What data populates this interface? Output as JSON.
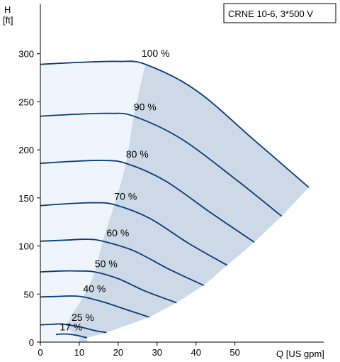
{
  "chart_data": {
    "type": "line",
    "title": "CRNE 10-6, 3*500 V",
    "ylabel_line1": "H",
    "ylabel_line2": "[ft]",
    "xlabel": "Q [US gpm]",
    "xlim": [
      0,
      71
    ],
    "ylim": [
      0,
      350
    ],
    "x_ticks": [
      0,
      10,
      20,
      30,
      40,
      50
    ],
    "y_ticks": [
      0,
      50,
      100,
      150,
      200,
      250,
      300
    ],
    "grid": false,
    "colors": {
      "curve": "#0a3a7a",
      "region_inner": "#eef5fc",
      "region_outer": "#cdd9e6",
      "axis": "#000000"
    },
    "series": [
      {
        "name": "100 %",
        "points": [
          [
            0,
            289
          ],
          [
            10,
            291
          ],
          [
            20,
            292
          ],
          [
            27,
            289
          ],
          [
            40,
            262
          ],
          [
            55,
            210
          ],
          [
            69,
            161
          ]
        ]
      },
      {
        "name": "90 %",
        "points": [
          [
            0,
            235
          ],
          [
            9,
            237
          ],
          [
            18,
            238
          ],
          [
            24,
            235
          ],
          [
            36,
            212
          ],
          [
            50,
            170
          ],
          [
            62,
            131
          ]
        ]
      },
      {
        "name": "80 %",
        "points": [
          [
            0,
            186
          ],
          [
            8,
            188
          ],
          [
            16,
            189
          ],
          [
            22,
            186
          ],
          [
            32,
            168
          ],
          [
            44,
            134
          ],
          [
            55,
            104
          ]
        ]
      },
      {
        "name": "70 %",
        "points": [
          [
            0,
            142
          ],
          [
            7,
            144
          ],
          [
            14,
            145
          ],
          [
            19,
            143
          ],
          [
            28,
            129
          ],
          [
            38,
            103
          ],
          [
            48,
            80
          ]
        ]
      },
      {
        "name": "60 %",
        "points": [
          [
            0,
            105
          ],
          [
            6,
            106
          ],
          [
            12,
            107
          ],
          [
            16,
            105
          ],
          [
            24,
            95
          ],
          [
            33,
            76
          ],
          [
            42,
            59
          ]
        ]
      },
      {
        "name": "50 %",
        "points": [
          [
            0,
            73
          ],
          [
            5,
            74
          ],
          [
            10,
            74
          ],
          [
            14,
            73
          ],
          [
            20,
            66
          ],
          [
            27,
            53
          ],
          [
            35,
            41
          ]
        ]
      },
      {
        "name": "40 %",
        "points": [
          [
            0,
            47
          ],
          [
            4,
            47.5
          ],
          [
            8,
            48
          ],
          [
            11,
            47
          ],
          [
            16,
            42
          ],
          [
            22,
            34
          ],
          [
            28,
            26
          ]
        ]
      },
      {
        "name": "25 %",
        "points": [
          [
            0,
            18
          ],
          [
            3,
            18.5
          ],
          [
            5,
            19
          ],
          [
            7,
            18
          ],
          [
            10,
            16
          ],
          [
            14,
            12
          ],
          [
            17,
            10
          ]
        ]
      },
      {
        "name": "17 %",
        "points": [
          [
            4,
            8
          ],
          [
            6,
            8.5
          ],
          [
            8,
            8
          ],
          [
            10,
            6.5
          ],
          [
            12,
            4.5
          ]
        ]
      }
    ],
    "labels": [
      {
        "text": "100 %",
        "x": 26,
        "y": 297
      },
      {
        "text": "90 %",
        "x": 24,
        "y": 241
      },
      {
        "text": "80 %",
        "x": 22,
        "y": 192
      },
      {
        "text": "70 %",
        "x": 19,
        "y": 148
      },
      {
        "text": "60 %",
        "x": 17,
        "y": 110
      },
      {
        "text": "50 %",
        "x": 14,
        "y": 78
      },
      {
        "text": "40 %",
        "x": 11,
        "y": 52
      },
      {
        "text": "25 %",
        "x": 8,
        "y": 22
      },
      {
        "text": "17 %",
        "x": 5,
        "y": 12
      }
    ]
  }
}
